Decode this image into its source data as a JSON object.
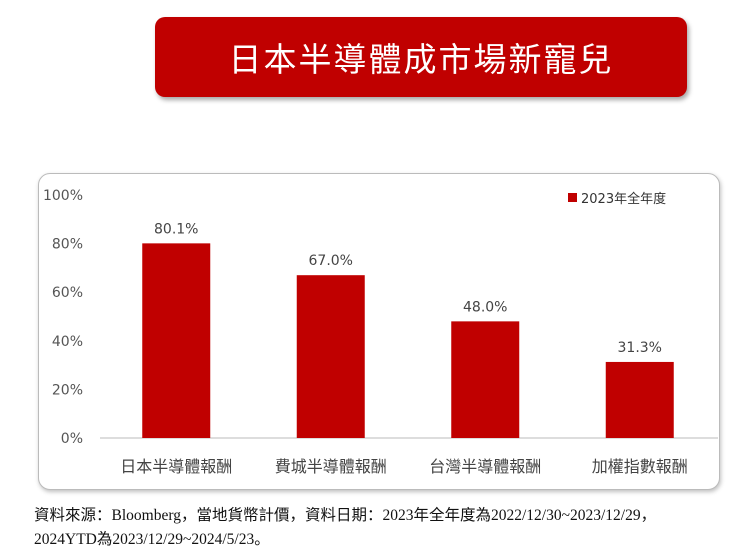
{
  "header": {
    "title": "日本半導體成市場新寵兒"
  },
  "chart_data": {
    "type": "bar",
    "title": "",
    "categories": [
      "日本半導體報酬",
      "費城半導體報酬",
      "台灣半導體報酬",
      "加權指數報酬"
    ],
    "series": [
      {
        "name": "2023年全年度",
        "values": [
          80.1,
          67.0,
          48.0,
          31.3
        ],
        "color": "#c00000"
      }
    ],
    "data_labels": [
      "80.1%",
      "67.0%",
      "48.0%",
      "31.3%"
    ],
    "yticks": [
      "0%",
      "20%",
      "40%",
      "60%",
      "80%",
      "100%"
    ],
    "ylim": [
      0,
      100
    ],
    "xlabel": "",
    "ylabel": "",
    "legend": "top-right",
    "grid": false
  },
  "footnote": {
    "line1": "資料來源：Bloomberg，當地貨幣計價，資料日期：2023年全年度為2022/12/30~2023/12/29，",
    "line2": "2024YTD為2023/12/29~2024/5/23。"
  }
}
